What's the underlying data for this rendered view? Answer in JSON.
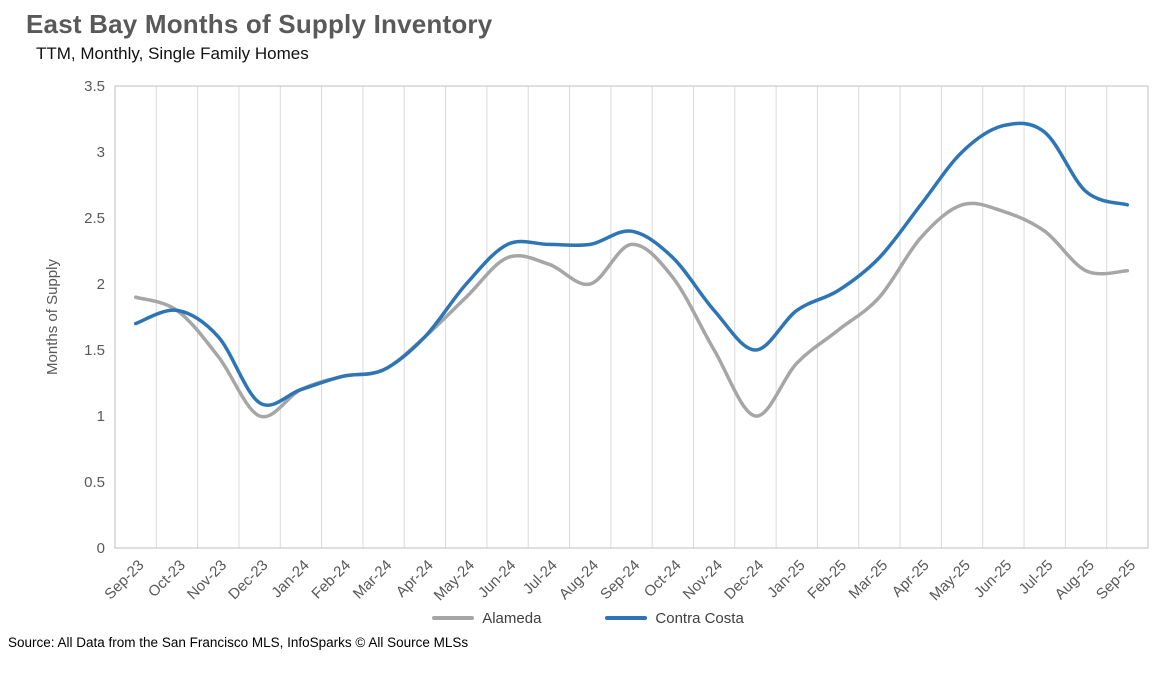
{
  "header": {
    "title": "East Bay Months of Supply Inventory",
    "subtitle": "TTM, Monthly, Single Family Homes"
  },
  "footer": {
    "source": "Source: All Data from the San Francisco MLS, InfoSparks © All Source MLSs"
  },
  "chart_data": {
    "type": "line",
    "title": "East Bay Months of Supply Inventory",
    "subtitle": "TTM, Monthly, Single Family Homes",
    "ylabel": "Months of Supply",
    "xlabel": "",
    "ylim": [
      0,
      3.5
    ],
    "yticks": [
      0,
      0.5,
      1,
      1.5,
      2,
      2.5,
      3,
      3.5
    ],
    "grid": "vertical",
    "legend_position": "bottom",
    "categories": [
      "Sep-23",
      "Oct-23",
      "Nov-23",
      "Dec-23",
      "Jan-24",
      "Feb-24",
      "Mar-24",
      "Apr-24",
      "May-24",
      "Jun-24",
      "Jul-24",
      "Aug-24",
      "Sep-24",
      "Oct-24",
      "Nov-24",
      "Dec-24",
      "Jan-25",
      "Feb-25",
      "Mar-25",
      "Apr-25",
      "May-25",
      "Jun-25",
      "Jul-25",
      "Aug-25",
      "Sep-25"
    ],
    "series": [
      {
        "name": "Alameda",
        "color": "#A6A6A6",
        "values": [
          1.9,
          1.8,
          1.45,
          1.0,
          1.2,
          1.3,
          1.35,
          1.6,
          1.9,
          2.2,
          2.15,
          2.0,
          2.3,
          2.05,
          1.5,
          1.0,
          1.4,
          1.65,
          1.9,
          2.35,
          2.6,
          2.55,
          2.4,
          2.1,
          2.1
        ]
      },
      {
        "name": "Contra Costa",
        "color": "#2E75B6",
        "values": [
          1.7,
          1.8,
          1.6,
          1.1,
          1.2,
          1.3,
          1.35,
          1.6,
          2.0,
          2.3,
          2.3,
          2.3,
          2.4,
          2.2,
          1.8,
          1.5,
          1.8,
          1.95,
          2.2,
          2.6,
          3.0,
          3.2,
          3.15,
          2.7,
          2.6
        ]
      }
    ]
  }
}
